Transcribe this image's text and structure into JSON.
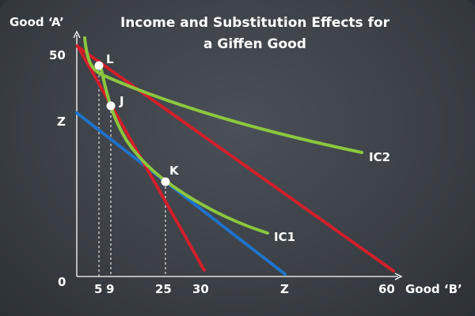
{
  "title_line1": "Income and Substitution Effects for",
  "title_line2": "a Giffen Good",
  "y_axis_label": "Good ‘A’",
  "x_axis_label": "Good ‘B’",
  "y_ticks": {
    "top": "50",
    "mid": "Z",
    "origin": "0"
  },
  "x_ticks": {
    "t5": "5",
    "t9": "9",
    "t25": "25",
    "t30": "30",
    "tz": "Z",
    "t60": "60"
  },
  "points": {
    "L": "L",
    "J": "J",
    "K": "K"
  },
  "curves": {
    "ic1": "IC1",
    "ic2": "IC2"
  },
  "colors": {
    "budget_line": "#d11f2b",
    "compensated_line": "#1f72c9",
    "indifference_curve": "#8cc63f",
    "axes": "#ffffff",
    "background": "#3c4147"
  }
}
